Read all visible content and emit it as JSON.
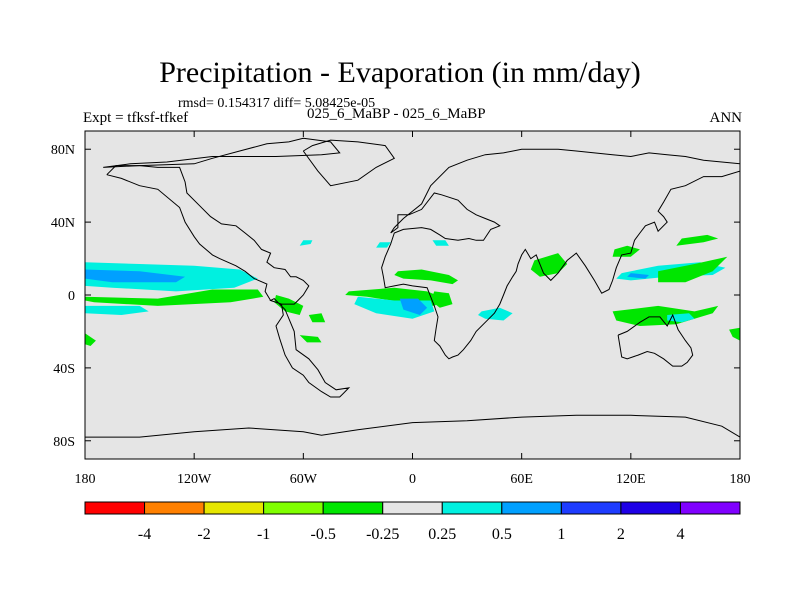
{
  "chart_data": {
    "type": "heatmap",
    "title": "Precipitation - Evaporation (in mm/day)",
    "stats": "rmsd= 0.154317 diff= 5.08425e-05",
    "left_label": "Expt = tfksf-tfkef",
    "center_label": "025_6_MaBP - 025_6_MaBP",
    "right_label": "ANN",
    "x_range": [
      -180,
      180
    ],
    "y_range": [
      -90,
      90
    ],
    "x_ticks": [
      {
        "v": -180,
        "label": "180"
      },
      {
        "v": -120,
        "label": "120W"
      },
      {
        "v": -60,
        "label": "60W"
      },
      {
        "v": 0,
        "label": "0"
      },
      {
        "v": 60,
        "label": "60E"
      },
      {
        "v": 120,
        "label": "120E"
      },
      {
        "v": 180,
        "label": "180"
      }
    ],
    "y_ticks": [
      {
        "v": 80,
        "label": "80N"
      },
      {
        "v": 40,
        "label": "40N"
      },
      {
        "v": 0,
        "label": "0"
      },
      {
        "v": -40,
        "label": "40S"
      },
      {
        "v": -80,
        "label": "80S"
      }
    ],
    "colorbar": {
      "colors": [
        "#ff0000",
        "#ff8000",
        "#e6e600",
        "#80ff00",
        "#00e600",
        "#e5e5e5",
        "#00f0e0",
        "#00a0ff",
        "#1e3cff",
        "#1e00e6",
        "#8000ff"
      ],
      "labels": [
        "-4",
        "-2",
        "-1",
        "-0.5",
        "-0.25",
        "0.25",
        "0.5",
        "1",
        "2",
        "4"
      ]
    },
    "regions": [
      {
        "level": "0.25",
        "color": "#00f0e0",
        "lon": [
          -180,
          -150,
          -120,
          -95,
          -85,
          -98,
          -130,
          -165,
          -180
        ],
        "lat": [
          18,
          17,
          16,
          14,
          9,
          4,
          2,
          4,
          5
        ]
      },
      {
        "level": "0.5",
        "color": "#00a0ff",
        "lon": [
          -180,
          -150,
          -125,
          -130,
          -165,
          -180
        ],
        "lat": [
          14,
          13,
          10,
          7,
          7,
          9
        ]
      },
      {
        "level": "-0.25",
        "color": "#00e600",
        "lon": [
          -180,
          -140,
          -110,
          -85,
          -82,
          -100,
          -140,
          -175,
          -180
        ],
        "lat": [
          -1,
          -2,
          3,
          3,
          -1,
          -4,
          -6,
          -4,
          -3
        ]
      },
      {
        "level": "0.25",
        "color": "#00f0e0",
        "lon": [
          -180,
          -150,
          -145,
          -160,
          -180
        ],
        "lat": [
          -6,
          -6,
          -9,
          -11,
          -10
        ]
      },
      {
        "level": "-0.25",
        "color": "#00e600",
        "lon": [
          -180,
          -174,
          -177,
          -180
        ],
        "lat": [
          -21,
          -25,
          -28,
          -27
        ]
      },
      {
        "level": "-0.25",
        "color": "#00e600",
        "lon": [
          -75,
          -68,
          -60,
          -62,
          -70,
          -76
        ],
        "lat": [
          0,
          -2,
          -6,
          -11,
          -9,
          -4
        ]
      },
      {
        "level": "-0.25",
        "color": "#00e600",
        "lon": [
          -57,
          -50,
          -48,
          -55
        ],
        "lat": [
          -11,
          -10,
          -15,
          -15
        ]
      },
      {
        "level": "-0.25",
        "color": "#00e600",
        "lon": [
          -35,
          -10,
          8,
          18,
          12,
          -5,
          -25,
          -37
        ],
        "lat": [
          2,
          4,
          2,
          -2,
          -6,
          -4,
          -1,
          0
        ]
      },
      {
        "level": "0.25",
        "color": "#00f0e0",
        "lon": [
          -30,
          -10,
          10,
          12,
          0,
          -20,
          -32
        ],
        "lat": [
          -1,
          -3,
          -3,
          -9,
          -13,
          -10,
          -5
        ]
      },
      {
        "level": "0.5",
        "color": "#00a0ff",
        "lon": [
          -7,
          3,
          8,
          4,
          -5
        ],
        "lat": [
          -2,
          -2,
          -7,
          -11,
          -8
        ]
      },
      {
        "level": "-0.25",
        "color": "#00e600",
        "lon": [
          -8,
          5,
          20,
          25,
          22,
          10,
          -5,
          -10
        ],
        "lat": [
          13,
          14,
          11,
          8,
          6,
          8,
          9,
          11
        ]
      },
      {
        "level": "-0.25",
        "color": "#00e600",
        "lon": [
          12,
          20,
          22,
          15,
          10
        ],
        "lat": [
          2,
          1,
          -5,
          -7,
          -3
        ]
      },
      {
        "level": "0.25",
        "color": "#00f0e0",
        "lon": [
          38,
          48,
          55,
          50,
          40,
          36
        ],
        "lat": [
          -9,
          -7,
          -10,
          -14,
          -13,
          -11
        ]
      },
      {
        "level": "-0.25",
        "color": "#00e600",
        "lon": [
          67,
          80,
          85,
          80,
          70,
          65
        ],
        "lat": [
          19,
          23,
          17,
          12,
          10,
          14
        ]
      },
      {
        "level": "0.25",
        "color": "#00f0e0",
        "lon": [
          115,
          135,
          158,
          172,
          165,
          140,
          120,
          112
        ],
        "lat": [
          12,
          16,
          18,
          15,
          11,
          10,
          8,
          9
        ]
      },
      {
        "level": "0.5",
        "color": "#00a0ff",
        "lon": [
          120,
          130,
          128,
          118
        ],
        "lat": [
          12,
          11,
          9,
          10
        ]
      },
      {
        "level": "-0.25",
        "color": "#00e600",
        "lon": [
          135,
          155,
          173,
          165,
          150,
          135
        ],
        "lat": [
          13,
          17,
          21,
          13,
          7,
          7
        ]
      },
      {
        "level": "-0.25",
        "color": "#00e600",
        "lon": [
          110,
          120,
          125,
          118,
          111
        ],
        "lat": [
          21,
          21,
          25,
          27,
          25
        ]
      },
      {
        "level": "-0.25",
        "color": "#00e600",
        "lon": [
          145,
          160,
          168,
          162,
          148
        ],
        "lat": [
          27,
          29,
          31,
          33,
          31
        ]
      },
      {
        "level": "-0.25",
        "color": "#00e600",
        "lon": [
          110,
          135,
          155,
          168,
          165,
          145,
          125,
          112
        ],
        "lat": [
          -9,
          -6,
          -9,
          -6,
          -10,
          -16,
          -17,
          -14
        ]
      },
      {
        "level": "0.25",
        "color": "#00f0e0",
        "lon": [
          140,
          152,
          155,
          148,
          140
        ],
        "lat": [
          -11,
          -10,
          -13,
          -15,
          -14
        ]
      },
      {
        "level": "-0.25",
        "color": "#00e600",
        "lon": [
          174,
          180,
          180,
          176
        ],
        "lat": [
          -19,
          -18,
          -25,
          -23
        ]
      },
      {
        "level": "-0.25",
        "color": "#00e600",
        "lon": [
          -62,
          -52,
          -50,
          -58
        ],
        "lat": [
          -22,
          -23,
          -26,
          -26
        ]
      },
      {
        "level": "0.25",
        "color": "#00f0e0",
        "lon": [
          -62,
          -56,
          -55,
          -60
        ],
        "lat": [
          27,
          28,
          30,
          30
        ]
      },
      {
        "level": "0.25",
        "color": "#00f0e0",
        "lon": [
          -20,
          -14,
          -12,
          -18
        ],
        "lat": [
          26,
          26,
          29,
          29
        ]
      },
      {
        "level": "0.25",
        "color": "#00f0e0",
        "lon": [
          13,
          20,
          18,
          11
        ],
        "lat": [
          27,
          27,
          30,
          30
        ]
      }
    ],
    "coastlines": [
      {
        "lon": [
          -168,
          -163,
          -150,
          -140,
          -128,
          -125,
          -124,
          -117,
          -111,
          -105,
          -97,
          -92,
          -87,
          -83,
          -78,
          -80,
          -76,
          -70,
          -67,
          -64,
          -60,
          -57,
          -60,
          -63,
          -65,
          -72,
          -78,
          -76,
          -70,
          -65,
          -64,
          -57,
          -52,
          -48,
          -42,
          -35,
          -38,
          -40,
          -45,
          -50,
          -57,
          -60,
          -66,
          -70,
          -73,
          -75,
          -71,
          -72,
          -78,
          -81,
          -80,
          -87,
          -92,
          -97,
          -106,
          -110,
          -117,
          -120,
          -125,
          -128,
          -140,
          -150,
          -160,
          -168
        ],
        "lat": [
          66,
          71,
          71,
          70,
          70,
          62,
          56,
          49,
          43,
          39,
          38,
          34,
          30,
          25,
          23,
          18,
          15,
          14,
          10,
          10,
          8,
          5,
          0,
          -3,
          -5,
          -5,
          -3,
          -2,
          -8,
          -20,
          -30,
          -35,
          -41,
          -48,
          -52,
          -51,
          -54,
          -56,
          -56,
          -53,
          -48,
          -44,
          -40,
          -33,
          -24,
          -17,
          -11,
          -5,
          -3,
          2,
          6,
          9,
          13,
          16,
          20,
          22,
          28,
          32,
          40,
          48,
          58,
          60,
          64,
          66
        ]
      },
      {
        "lon": [
          -170,
          -150,
          -120,
          -110,
          -95,
          -80,
          -68,
          -60,
          -45,
          -40,
          -50,
          -75,
          -90,
          -110,
          -135,
          -155,
          -170
        ],
        "lat": [
          70,
          71,
          72,
          75,
          79,
          83,
          84,
          86,
          84,
          78,
          77,
          76,
          76,
          76,
          73,
          72,
          70
        ]
      },
      {
        "lon": [
          -60,
          -55,
          -45,
          -30,
          -15,
          -10,
          -20,
          -30,
          -45,
          -52,
          -60
        ],
        "lat": [
          79,
          82,
          85,
          84,
          82,
          75,
          70,
          63,
          60,
          68,
          79
        ]
      },
      {
        "lon": [
          -12,
          -8,
          -8,
          -2,
          5,
          12,
          16,
          25,
          30,
          35,
          40,
          45,
          48,
          43,
          39,
          35,
          31,
          25,
          18,
          15,
          10,
          5,
          -5,
          -10,
          -12,
          -15,
          -17,
          -16,
          -15,
          -10,
          -5,
          0,
          8,
          10,
          12,
          14,
          13,
          12,
          15,
          18,
          20,
          22,
          25,
          28,
          32,
          35,
          40,
          45,
          48,
          50,
          52,
          55,
          57,
          58,
          60,
          62,
          65,
          68,
          72,
          76,
          80,
          85,
          90,
          95,
          100,
          104,
          108,
          110,
          112,
          115,
          120,
          122,
          125,
          128,
          133,
          135,
          140,
          138,
          135,
          138,
          142,
          150,
          160,
          170,
          180,
          180,
          160,
          150,
          140,
          130,
          120,
          110,
          100,
          90,
          80,
          70,
          60,
          50,
          40,
          30,
          20,
          10,
          5,
          -5,
          -10,
          -12
        ],
        "lat": [
          34,
          37,
          44,
          44,
          47,
          56,
          55,
          52,
          47,
          44,
          42,
          40,
          38,
          36,
          30,
          30,
          31,
          30,
          31,
          33,
          36,
          37,
          36,
          34,
          28,
          21,
          15,
          10,
          4,
          5,
          6,
          5,
          4,
          -1,
          -6,
          -12,
          -18,
          -25,
          -28,
          -33,
          -35,
          -34,
          -33,
          -30,
          -25,
          -20,
          -15,
          -10,
          -5,
          0,
          5,
          10,
          13,
          17,
          22,
          25,
          20,
          22,
          12,
          8,
          12,
          19,
          23,
          16,
          8,
          1,
          3,
          8,
          15,
          22,
          23,
          30,
          34,
          38,
          40,
          35,
          40,
          43,
          46,
          51,
          58,
          60,
          65,
          65,
          68,
          72,
          74,
          76,
          77,
          78,
          76,
          77,
          78,
          79,
          80,
          80,
          80,
          78,
          77,
          74,
          70,
          60,
          50,
          42,
          37,
          34
        ]
      },
      {
        "lon": [
          113,
          118,
          125,
          130,
          136,
          140,
          143,
          146,
          150,
          153,
          154,
          151,
          148,
          143,
          138,
          133,
          129,
          124,
          118,
          115,
          113
        ],
        "lat": [
          -22,
          -20,
          -15,
          -12,
          -12,
          -17,
          -11,
          -19,
          -25,
          -29,
          -33,
          -37,
          -39,
          -39,
          -35,
          -32,
          -31,
          -33,
          -35,
          -34,
          -22
        ]
      },
      {
        "lon": [
          -180,
          -150,
          -120,
          -90,
          -60,
          -50,
          -30,
          0,
          30,
          60,
          90,
          120,
          150,
          170,
          180
        ],
        "lat": [
          -78,
          -78,
          -75,
          -73,
          -75,
          -77,
          -74,
          -70,
          -69,
          -67,
          -66,
          -66,
          -67,
          -72,
          -78
        ]
      }
    ]
  }
}
